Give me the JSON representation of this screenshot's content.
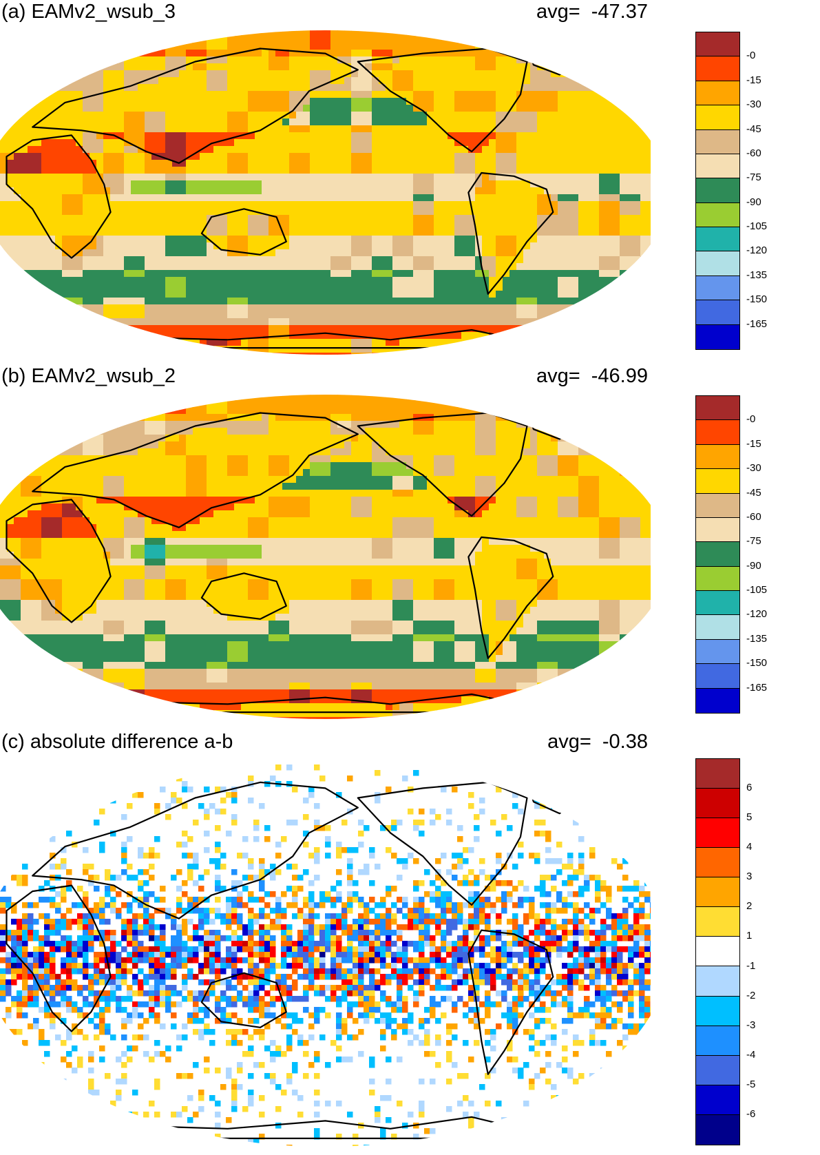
{
  "panels": [
    {
      "title": "(a) EAMv2_wsub_3",
      "avg_label": "avg=",
      "avg_value": "-47.37",
      "colorbar": {
        "colors": [
          "#a52a2a",
          "#ff4500",
          "#ffa500",
          "#ffd700",
          "#deb887",
          "#f5deb3",
          "#2e8b57",
          "#9acd32",
          "#20b2aa",
          "#b0e0e6",
          "#6495ed",
          "#4169e1",
          "#0000cd"
        ],
        "labels": [
          "-0",
          "-15",
          "-30",
          "-45",
          "-60",
          "-75",
          "-90",
          "-105",
          "-120",
          "-135",
          "-150",
          "-165"
        ]
      }
    },
    {
      "title": "(b) EAMv2_wsub_2",
      "avg_label": "avg=",
      "avg_value": "-46.99",
      "colorbar": {
        "colors": [
          "#a52a2a",
          "#ff4500",
          "#ffa500",
          "#ffd700",
          "#deb887",
          "#f5deb3",
          "#2e8b57",
          "#9acd32",
          "#20b2aa",
          "#b0e0e6",
          "#6495ed",
          "#4169e1",
          "#0000cd"
        ],
        "labels": [
          "-0",
          "-15",
          "-30",
          "-45",
          "-60",
          "-75",
          "-90",
          "-105",
          "-120",
          "-135",
          "-150",
          "-165"
        ]
      }
    },
    {
      "title": "(c) absolute difference a-b",
      "avg_label": "avg=",
      "avg_value": "-0.38",
      "colorbar": {
        "colors": [
          "#a52a2a",
          "#cd0000",
          "#ff0000",
          "#ff6600",
          "#ffa500",
          "#ffdd33",
          "#ffffff",
          "#b0d8ff",
          "#00bfff",
          "#1e90ff",
          "#4169e1",
          "#0000cd",
          "#00008b"
        ],
        "labels": [
          "6",
          "5",
          "4",
          "3",
          "2",
          "1",
          "-1",
          "-2",
          "-3",
          "-4",
          "-5",
          "-6"
        ]
      }
    }
  ]
}
